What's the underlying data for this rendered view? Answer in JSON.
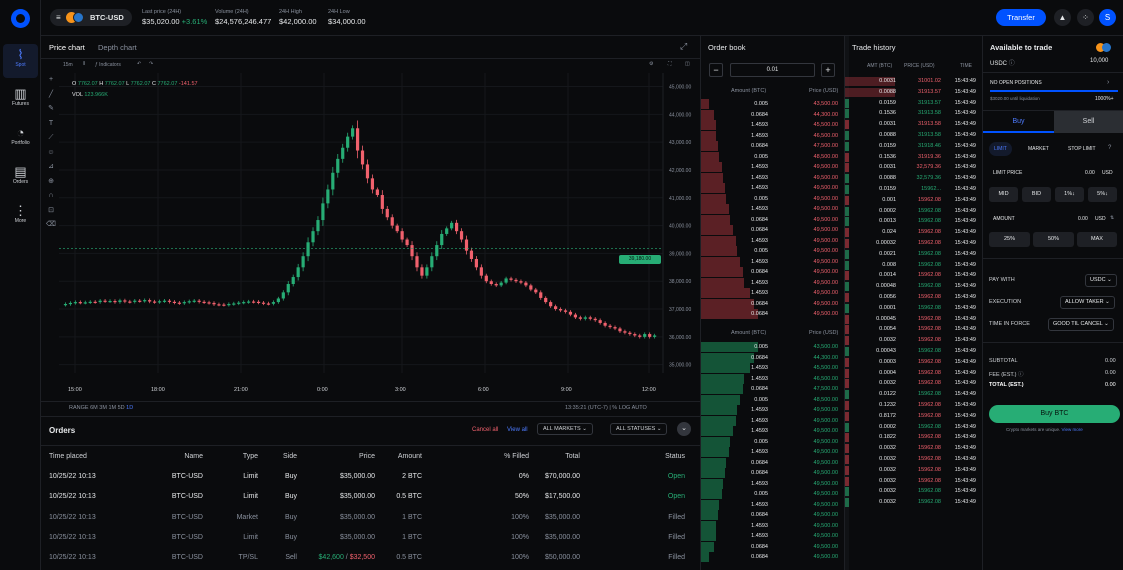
{
  "nav": {
    "items": [
      {
        "label": "Spot",
        "icon": "spot-chart-icon"
      },
      {
        "label": "Futures",
        "icon": "futures-bars-icon"
      },
      {
        "label": "Portfolio",
        "icon": "portfolio-pie-icon"
      },
      {
        "label": "Orders",
        "icon": "orders-doc-icon"
      },
      {
        "label": "More",
        "icon": "more-dots-icon"
      }
    ]
  },
  "top": {
    "pair": "BTC-USD",
    "last_price_label": "Last price (24H)",
    "last_price": "$35,020.00",
    "last_change": "+3.61%",
    "volume_label": "Volume (24H)",
    "volume": "$24,576,246.477",
    "high_label": "24H High",
    "high": "$42,000.00",
    "low_label": "24H Low",
    "low": "$34,000.00",
    "transfer": "Transfer",
    "avatar": "S"
  },
  "chart": {
    "tab_price": "Price chart",
    "tab_depth": "Depth chart",
    "interval": "15m",
    "indicators": "Indicators",
    "ohlc": {
      "o_label": "O",
      "o": "7762.07",
      "h_label": "H",
      "h": "7762.07",
      "l_label": "L",
      "l": "7762.07",
      "c_label": "C",
      "c": "7762.07",
      "chg": "-141.57"
    },
    "vol_label": "VOL",
    "vol": "123.966K",
    "price_tag": "39,180.00",
    "range_label": "RANGE",
    "ranges": [
      "6M",
      "3M",
      "1M",
      "5D",
      "1D"
    ],
    "footer_time": "13:35:21 (UTC-7)",
    "footer_pct": "%",
    "footer_log": "LOG",
    "footer_auto": "AUTO"
  },
  "chart_data": {
    "type": "candlestick",
    "x_ticks": [
      "15:00",
      "18:00",
      "21:00",
      "0:00",
      "3:00",
      "6:00",
      "9:00",
      "12:00"
    ],
    "y_ticks": [
      "45,000.00",
      "44,000.00",
      "43,000.00",
      "42,000.00",
      "41,000.00",
      "40,000.00",
      "39,000.00",
      "38,000.00",
      "37,000.00",
      "36,000.00",
      "35,000.00"
    ],
    "ylim": [
      34700,
      45200
    ],
    "close_series": [
      37180,
      37220,
      37250,
      37230,
      37240,
      37260,
      37250,
      37300,
      37280,
      37290,
      37250,
      37310,
      37270,
      37260,
      37300,
      37290,
      37320,
      37270,
      37250,
      37280,
      37300,
      37260,
      37230,
      37210,
      37250,
      37280,
      37300,
      37260,
      37240,
      37220,
      37170,
      37160,
      37150,
      37180,
      37200,
      37230,
      37250,
      37270,
      37260,
      37230,
      37200,
      37190,
      37250,
      37380,
      37600,
      37900,
      38150,
      38500,
      38900,
      39400,
      39800,
      40200,
      40800,
      41300,
      41900,
      42400,
      42800,
      43200,
      43500,
      42700,
      42200,
      41700,
      41300,
      41100,
      40600,
      40300,
      40000,
      39800,
      39500,
      39300,
      38900,
      38500,
      38200,
      38500,
      38900,
      39300,
      39700,
      39900,
      40100,
      39800,
      39500,
      39100,
      38800,
      38500,
      38200,
      38000,
      37900,
      37850,
      37950,
      38100,
      38050,
      38000,
      37950,
      37850,
      37700,
      37600,
      37400,
      37250,
      37100,
      37000,
      36950,
      36900,
      36800,
      36700,
      36650,
      36700,
      36650,
      36600,
      36500,
      36400,
      36350,
      36300,
      36200,
      36150,
      36100,
      36050,
      36000,
      36100,
      36000,
      36050
    ]
  },
  "order_book": {
    "title": "Order book",
    "step": "0.01",
    "minus": "−",
    "plus": "+",
    "amount_header": "Amount (BTC)",
    "price_header": "Price (USD)",
    "asks": [
      [
        "0.005",
        "43,500.00"
      ],
      [
        "0.0684",
        "44,300.00"
      ],
      [
        "1.4593",
        "45,500.00"
      ],
      [
        "1.4593",
        "46,500.00"
      ],
      [
        "0.0684",
        "47,500.00"
      ],
      [
        "0.005",
        "48,500.00"
      ],
      [
        "1.4593",
        "49,500.00"
      ],
      [
        "1.4593",
        "49,500.00"
      ],
      [
        "1.4593",
        "49,500.00"
      ],
      [
        "0.005",
        "49,500.00"
      ],
      [
        "1.4593",
        "49,500.00"
      ],
      [
        "0.0684",
        "49,500.00"
      ],
      [
        "0.0684",
        "49,500.00"
      ],
      [
        "1.4593",
        "49,500.00"
      ],
      [
        "0.005",
        "49,500.00"
      ],
      [
        "1.4593",
        "49,500.00"
      ],
      [
        "0.0684",
        "49,500.00"
      ],
      [
        "1.4593",
        "49,500.00"
      ],
      [
        "1.4593",
        "49,500.00"
      ],
      [
        "0.0684",
        "49,500.00"
      ],
      [
        "0.0684",
        "49,500.00"
      ]
    ],
    "bids": [
      [
        "0.005",
        "43,500.00"
      ],
      [
        "0.0684",
        "44,300.00"
      ],
      [
        "1.4593",
        "45,500.00"
      ],
      [
        "1.4593",
        "46,500.00"
      ],
      [
        "0.0684",
        "47,500.00"
      ],
      [
        "0.005",
        "48,500.00"
      ],
      [
        "1.4593",
        "49,500.00"
      ],
      [
        "1.4593",
        "49,500.00"
      ],
      [
        "1.4593",
        "49,500.00"
      ],
      [
        "0.005",
        "49,500.00"
      ],
      [
        "1.4593",
        "49,500.00"
      ],
      [
        "0.0684",
        "49,500.00"
      ],
      [
        "0.0684",
        "49,500.00"
      ],
      [
        "1.4593",
        "49,500.00"
      ],
      [
        "0.005",
        "49,500.00"
      ],
      [
        "1.4593",
        "49,500.00"
      ],
      [
        "0.0684",
        "49,500.00"
      ],
      [
        "1.4593",
        "49,500.00"
      ],
      [
        "1.4593",
        "49,500.00"
      ],
      [
        "0.0684",
        "49,500.00"
      ],
      [
        "0.0684",
        "49,500.00"
      ]
    ]
  },
  "trades": {
    "title": "Trade history",
    "headers": [
      "AMT (BTC)",
      "PRICE (USD)",
      "TIME"
    ],
    "rows": [
      [
        "0.0031",
        "31001.02",
        "15:43:49",
        "r"
      ],
      [
        "0.0088",
        "31913.57",
        "15:43:49",
        "r"
      ],
      [
        "0.0159",
        "31913.57",
        "15:43:49",
        "g"
      ],
      [
        "0.1536",
        "31913.58",
        "15:43:49",
        "g"
      ],
      [
        "0.0031",
        "31913.58",
        "15:43:49",
        "r"
      ],
      [
        "0.0088",
        "31913.58",
        "15:43:49",
        "g"
      ],
      [
        "0.0159",
        "31918.46",
        "15:43:49",
        "g"
      ],
      [
        "0.1536",
        "31919.36",
        "15:43:49",
        "r"
      ],
      [
        "0.0031",
        "32,579.36",
        "15:43:49",
        "r"
      ],
      [
        "0.0088",
        "32,579.36",
        "15:43:49",
        "g"
      ],
      [
        "0.0159",
        "15962...",
        "15:43:49",
        "g"
      ],
      [
        "0.001",
        "15962.08",
        "15:43:49",
        "r"
      ],
      [
        "0.0002",
        "15962.08",
        "15:43:49",
        "g"
      ],
      [
        "0.0013",
        "15962.08",
        "15:43:49",
        "g"
      ],
      [
        "0.024",
        "15962.08",
        "15:43:49",
        "r"
      ],
      [
        "0.00032",
        "15962.08",
        "15:43:49",
        "r"
      ],
      [
        "0.0021",
        "15962.08",
        "15:43:49",
        "g"
      ],
      [
        "0.008",
        "15962.08",
        "15:43:49",
        "g"
      ],
      [
        "0.0014",
        "15962.08",
        "15:43:49",
        "r"
      ],
      [
        "0.00048",
        "15962.08",
        "15:43:49",
        "g"
      ],
      [
        "0.0056",
        "15962.08",
        "15:43:49",
        "r"
      ],
      [
        "0.0001",
        "15962.08",
        "15:43:49",
        "g"
      ],
      [
        "0.00045",
        "15962.08",
        "15:43:49",
        "r"
      ],
      [
        "0.0054",
        "15962.08",
        "15:43:49",
        "r"
      ],
      [
        "0.0032",
        "15962.08",
        "15:43:49",
        "r"
      ],
      [
        "0.00043",
        "15962.08",
        "15:43:49",
        "g"
      ],
      [
        "0.0003",
        "15962.08",
        "15:43:49",
        "r"
      ],
      [
        "0.0004",
        "15962.08",
        "15:43:49",
        "r"
      ],
      [
        "0.0032",
        "15962.08",
        "15:43:49",
        "r"
      ],
      [
        "0.0122",
        "15962.08",
        "15:43:49",
        "g"
      ],
      [
        "0.1232",
        "15962.08",
        "15:43:49",
        "r"
      ],
      [
        "0.8172",
        "15962.08",
        "15:43:49",
        "r"
      ],
      [
        "0.0002",
        "15962.08",
        "15:43:49",
        "g"
      ],
      [
        "0.1822",
        "15962.08",
        "15:43:49",
        "r"
      ],
      [
        "0.0032",
        "15962.08",
        "15:43:49",
        "r"
      ],
      [
        "0.0032",
        "15962.08",
        "15:43:49",
        "r"
      ],
      [
        "0.0032",
        "15962.08",
        "15:43:49",
        "r"
      ],
      [
        "0.0032",
        "15962.08",
        "15:43:49",
        "r"
      ],
      [
        "0.0032",
        "15962.08",
        "15:43:49",
        "g"
      ],
      [
        "0.0032",
        "15962.08",
        "15:43:49",
        "g"
      ]
    ]
  },
  "trade_panel": {
    "title": "Available to trade",
    "currency": "USDC",
    "balance": "10,000",
    "no_positions": "NO OPEN POSITIONS",
    "liq_text": "$3020.00 until liquidation",
    "liq_pct": "1000%+",
    "tab_buy": "Buy",
    "tab_sell": "Sell",
    "types": [
      "LIMIT",
      "MARKET",
      "STOP LIMIT"
    ],
    "limit_label": "LIMIT PRICE",
    "limit_value": "0.00",
    "limit_unit": "USD",
    "quick": [
      "MID",
      "BID",
      "1%↓",
      "5%↓"
    ],
    "amount_label": "AMOUNT",
    "amount_value": "0.00",
    "amount_unit": "USD",
    "pcts": [
      "25%",
      "50%",
      "MAX"
    ],
    "pay_label": "PAY WITH",
    "pay_value": "USDC",
    "exec_label": "EXECUTION",
    "exec_value": "ALLOW TAKER",
    "tif_label": "TIME IN FORCE",
    "tif_value": "GOOD TIL CANCEL",
    "subtotal_label": "SUBTOTAL",
    "subtotal": "0.00",
    "fee_label": "FEE (EST.)",
    "fee": "0.00",
    "total_label": "TOTAL (EST.)",
    "total": "0.00",
    "buy_btn": "Buy BTC",
    "disclaimer": "Crypto markets are unique.",
    "view_more": "View more"
  },
  "orders": {
    "title": "Orders",
    "cancel_all": "Cancel all",
    "view_all": "View all",
    "markets": "ALL MARKETS",
    "statuses": "ALL STATUSES",
    "headers": [
      "Time placed",
      "Name",
      "Type",
      "Side",
      "Price",
      "Amount",
      "% Filled",
      "Total",
      "Status"
    ],
    "rows": [
      {
        "time": "10/25/22 10:13",
        "name": "BTC-USD",
        "type": "Limit",
        "side": "Buy",
        "price": "$35,000.00",
        "price2": "",
        "amount": "2 BTC",
        "filled": "0%",
        "total": "$70,000.00",
        "status": "Open"
      },
      {
        "time": "10/25/22 10:13",
        "name": "BTC-USD",
        "type": "Limit",
        "side": "Buy",
        "price": "$35,000.00",
        "price2": "",
        "amount": "0.5 BTC",
        "filled": "50%",
        "total": "$17,500.00",
        "status": "Open"
      },
      {
        "time": "10/25/22 10:13",
        "name": "BTC-USD",
        "type": "Market",
        "side": "Buy",
        "price": "$35,000.00",
        "price2": "",
        "amount": "1 BTC",
        "filled": "100%",
        "total": "$35,000.00",
        "status": "Filled"
      },
      {
        "time": "10/25/22 10:13",
        "name": "BTC-USD",
        "type": "Limit",
        "side": "Buy",
        "price": "$35,000.00",
        "price2": "",
        "amount": "1 BTC",
        "filled": "100%",
        "total": "$35,000.00",
        "status": "Filled"
      },
      {
        "time": "10/25/22 10:13",
        "name": "BTC-USD",
        "type": "TP/SL",
        "side": "Sell",
        "price": "$42,600",
        "price2": "$32,500",
        "amount": "0.5 BTC",
        "filled": "100%",
        "total": "$50,000.00",
        "status": "Filled"
      }
    ]
  },
  "colors": {
    "accent": "#0052ff",
    "up": "#27ad75",
    "down": "#f0616d",
    "bg": "#0a0b0d"
  }
}
